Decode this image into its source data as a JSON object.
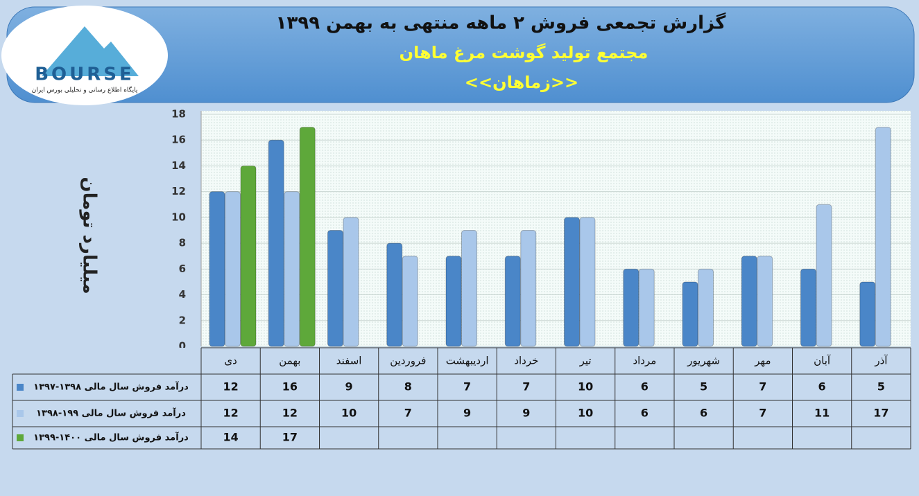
{
  "header": {
    "logo": "BOURSE",
    "logo_tagline": "پایگاه اطلاع رسانی و تحلیلی بورس ایران"
  },
  "chart_data": {
    "type": "bar",
    "title": "گزارش تجمعی فروش ۲ ماهه منتهی به بهمن ۱۳۹۹",
    "subtitle": "مجتمع تولید گوشت مرغ ماهان",
    "symbol": "<<زماهان>>",
    "y_label": "میلیارد تومان",
    "categories": [
      "دی",
      "بهمن",
      "اسفند",
      "فروردین",
      "اردیبهشت",
      "خرداد",
      "تیر",
      "مرداد",
      "شهریور",
      "مهر",
      "آبان",
      "آذر"
    ],
    "series": [
      {
        "name": "درآمد فروش سال مالی ۱۳۹۸-۱۳۹۷",
        "color": "#4a86c8",
        "values": [
          12,
          16,
          9,
          8,
          7,
          7,
          10,
          6,
          5,
          7,
          6,
          5
        ]
      },
      {
        "name": "درآمد فروش سال مالی ۱۹۹-۱۳۹۸",
        "color": "#a9c7ea",
        "values": [
          12,
          12,
          10,
          7,
          9,
          9,
          10,
          6,
          6,
          7,
          11,
          17
        ]
      },
      {
        "name": "درآمد فروش سال مالی ۱۴۰۰-۱۳۹۹",
        "color": "#5ea83a",
        "values": [
          14,
          17,
          null,
          null,
          null,
          null,
          null,
          null,
          null,
          null,
          null,
          null
        ]
      }
    ],
    "ylim": [
      0,
      18
    ],
    "yticks": [
      0,
      2,
      4,
      6,
      8,
      10,
      12,
      14,
      16,
      18
    ],
    "grid": true
  }
}
